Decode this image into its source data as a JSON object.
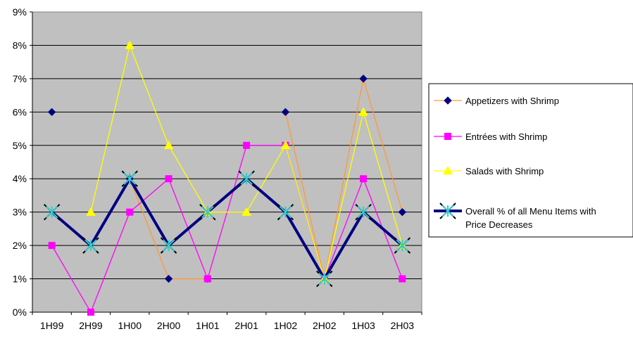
{
  "chart_data": {
    "type": "line",
    "title": "",
    "xlabel": "",
    "ylabel": "",
    "categories": [
      "1H99",
      "2H99",
      "1H00",
      "2H00",
      "1H01",
      "2H01",
      "1H02",
      "2H02",
      "1H03",
      "2H03"
    ],
    "ylim": [
      0,
      9
    ],
    "yticks": [
      "0%",
      "1%",
      "2%",
      "3%",
      "4%",
      "5%",
      "6%",
      "7%",
      "8%",
      "9%"
    ],
    "grid": true,
    "plot_background": "#c0c0c0",
    "legend_position": "right",
    "series": [
      {
        "name": "Appetizers with Shrimp",
        "values": [
          6,
          null,
          4,
          1,
          1,
          null,
          6,
          1,
          7,
          3
        ],
        "line_color": "#ff9933",
        "marker": "diamond",
        "marker_color": "#000080"
      },
      {
        "name": "Entrées with Shrimp",
        "values": [
          2,
          0,
          3,
          4,
          1,
          5,
          5,
          1,
          4,
          1
        ],
        "line_color": "#ff00ff",
        "marker": "square",
        "marker_color": "#ff00ff"
      },
      {
        "name": "Salads with Shrimp",
        "values": [
          null,
          3,
          8,
          5,
          3,
          3,
          5,
          1,
          6,
          2
        ],
        "line_color": "#ffff00",
        "marker": "triangle",
        "marker_color": "#ffff00"
      },
      {
        "name": "Overall % of all Menu Items with Price Decreases",
        "legend_lines": [
          "Overall % of all Menu Items with",
          "Price Decreases"
        ],
        "values": [
          3,
          2,
          4,
          2,
          3,
          4,
          3,
          1,
          3,
          2
        ],
        "line_color": "#000080",
        "marker": "star",
        "marker_color": "#33cccc"
      }
    ]
  }
}
